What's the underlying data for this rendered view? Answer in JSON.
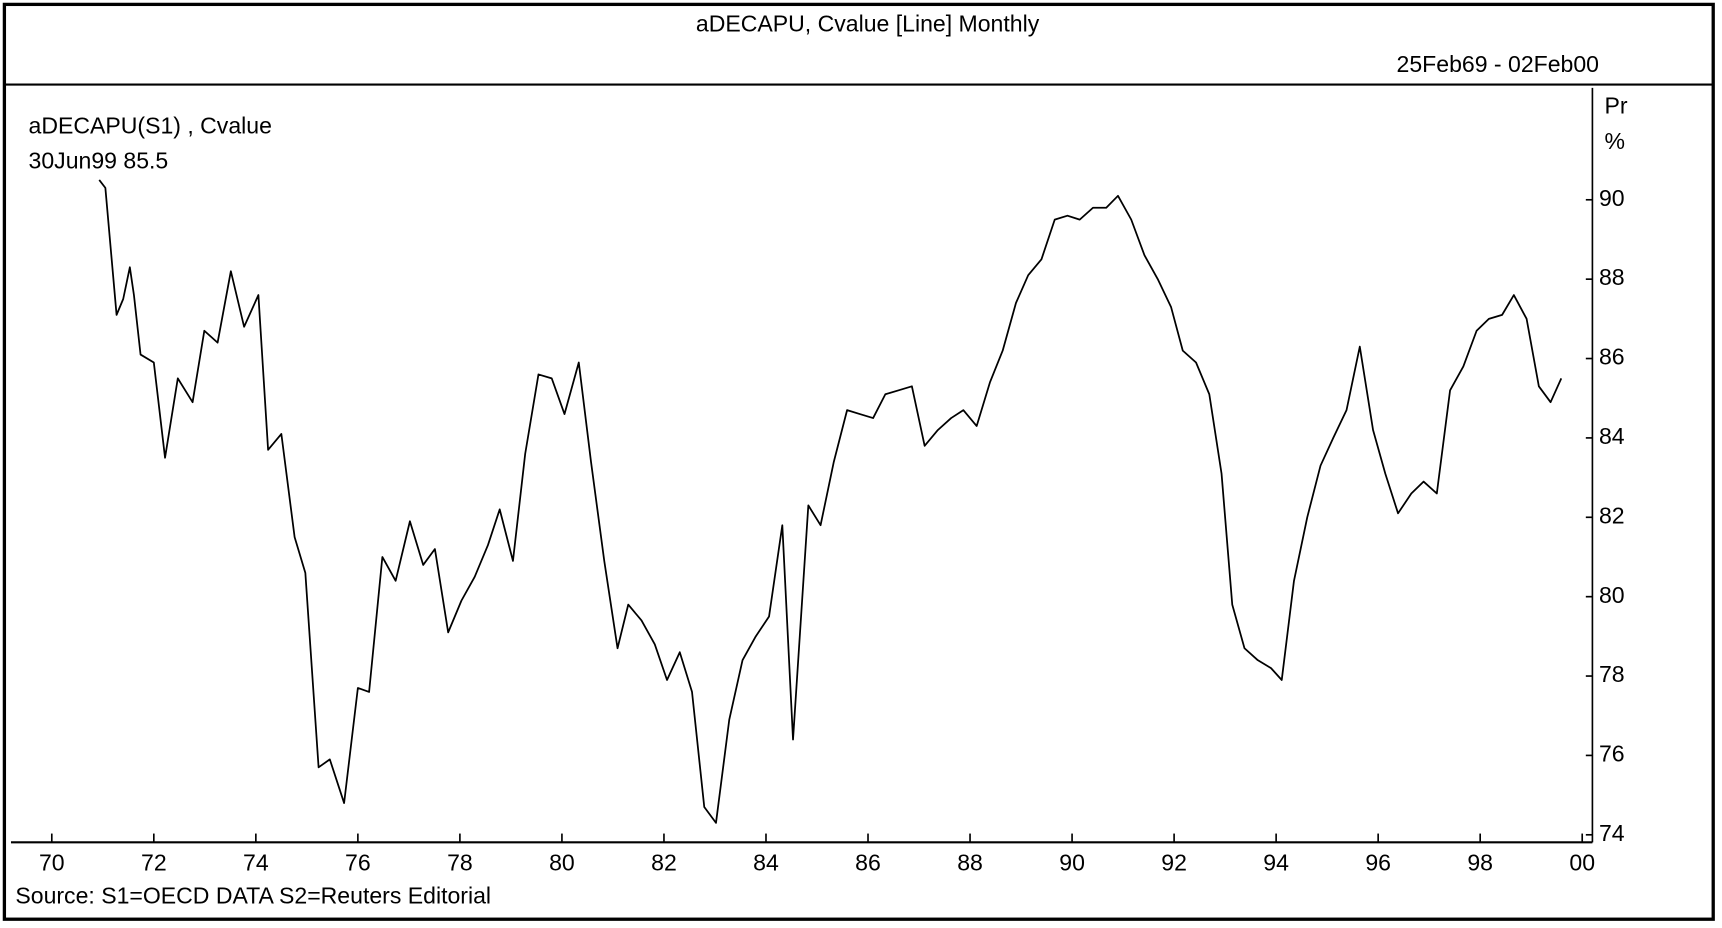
{
  "chart_data": {
    "type": "line",
    "title": "aDECAPU, Cvalue [Line] Monthly",
    "date_range": "25Feb69 - 02Feb00",
    "annotation": "30Jun99 85.5",
    "ylabel": [
      "Pr",
      "%"
    ],
    "source": "Source: S1=OECD DATA S2=Reuters Editorial",
    "xlim": [
      1969.2,
      2000.2
    ],
    "ylim": [
      73.81,
      92.82
    ],
    "xticks": [
      {
        "value": 1970,
        "label": "70"
      },
      {
        "value": 1972,
        "label": "72"
      },
      {
        "value": 1974,
        "label": "74"
      },
      {
        "value": 1976,
        "label": "76"
      },
      {
        "value": 1978,
        "label": "78"
      },
      {
        "value": 1980,
        "label": "80"
      },
      {
        "value": 1982,
        "label": "82"
      },
      {
        "value": 1984,
        "label": "84"
      },
      {
        "value": 1986,
        "label": "86"
      },
      {
        "value": 1988,
        "label": "88"
      },
      {
        "value": 1990,
        "label": "90"
      },
      {
        "value": 1992,
        "label": "92"
      },
      {
        "value": 1994,
        "label": "94"
      },
      {
        "value": 1996,
        "label": "96"
      },
      {
        "value": 1998,
        "label": "98"
      },
      {
        "value": 2000,
        "label": "00"
      }
    ],
    "yticks": [
      74,
      76,
      78,
      80,
      82,
      84,
      86,
      88,
      90
    ],
    "grid": false,
    "x": [
      1970.93,
      1971.05,
      1971.27,
      1971.4,
      1971.53,
      1971.61,
      1971.74,
      1972.0,
      1972.22,
      1972.47,
      1972.76,
      1972.99,
      1973.25,
      1973.51,
      1973.77,
      1974.05,
      1974.24,
      1974.5,
      1974.76,
      1974.97,
      1975.23,
      1975.45,
      1975.73,
      1976.0,
      1976.22,
      1976.48,
      1976.74,
      1977.02,
      1977.28,
      1977.51,
      1977.77,
      1978.03,
      1978.29,
      1978.55,
      1978.78,
      1979.04,
      1979.28,
      1979.54,
      1979.8,
      1980.05,
      1980.33,
      1980.57,
      1980.83,
      1981.09,
      1981.3,
      1981.56,
      1981.82,
      1982.06,
      1982.31,
      1982.55,
      1982.79,
      1983.02,
      1983.28,
      1983.54,
      1983.8,
      1984.06,
      1984.32,
      1984.53,
      1984.83,
      1985.07,
      1985.33,
      1985.59,
      1985.84,
      1986.1,
      1986.34,
      1986.6,
      1986.86,
      1987.11,
      1987.37,
      1987.63,
      1987.87,
      1988.13,
      1988.39,
      1988.64,
      1988.9,
      1989.14,
      1989.4,
      1989.66,
      1989.91,
      1990.15,
      1990.41,
      1990.67,
      1990.9,
      1991.16,
      1991.42,
      1991.68,
      1991.94,
      1992.17,
      1992.43,
      1992.69,
      1992.93,
      1993.14,
      1993.38,
      1993.64,
      1993.9,
      1994.11,
      1994.35,
      1994.61,
      1994.87,
      1995.12,
      1995.38,
      1995.64,
      1995.9,
      1996.14,
      1996.39,
      1996.65,
      1996.89,
      1997.15,
      1997.41,
      1997.67,
      1997.93,
      1998.17,
      1998.43,
      1998.66,
      1998.91,
      1999.15,
      1999.38,
      1999.59
    ],
    "series": [
      {
        "name": "aDECAPU(S1) , Cvalue",
        "color": "#000000",
        "values": [
          90.5,
          90.3,
          87.1,
          87.5,
          88.3,
          87.6,
          86.1,
          85.9,
          83.5,
          85.5,
          84.9,
          86.7,
          86.4,
          88.2,
          86.8,
          87.6,
          83.7,
          84.1,
          81.5,
          80.6,
          75.7,
          75.9,
          74.8,
          77.7,
          77.6,
          81.0,
          80.4,
          81.9,
          80.8,
          81.2,
          79.1,
          79.9,
          80.5,
          81.3,
          82.2,
          80.9,
          83.6,
          85.6,
          85.5,
          84.6,
          85.9,
          83.4,
          80.9,
          78.7,
          79.8,
          79.4,
          78.8,
          77.9,
          78.6,
          77.6,
          74.7,
          74.3,
          76.9,
          78.4,
          79.0,
          79.5,
          81.8,
          76.4,
          82.3,
          81.8,
          83.4,
          84.7,
          84.6,
          84.5,
          85.1,
          85.2,
          85.3,
          83.8,
          84.2,
          84.5,
          84.7,
          84.3,
          85.4,
          86.2,
          87.4,
          88.1,
          88.5,
          89.5,
          89.6,
          89.5,
          89.8,
          89.8,
          90.1,
          89.5,
          88.6,
          88.0,
          87.3,
          86.2,
          85.9,
          85.1,
          83.1,
          79.8,
          78.7,
          78.4,
          78.2,
          77.9,
          80.4,
          82.0,
          83.3,
          84.0,
          84.7,
          86.3,
          84.2,
          83.1,
          82.1,
          82.6,
          82.9,
          82.6,
          85.2,
          85.8,
          86.7,
          87.0,
          87.1,
          87.6,
          87.0,
          85.3,
          84.9,
          85.5
        ]
      }
    ]
  }
}
